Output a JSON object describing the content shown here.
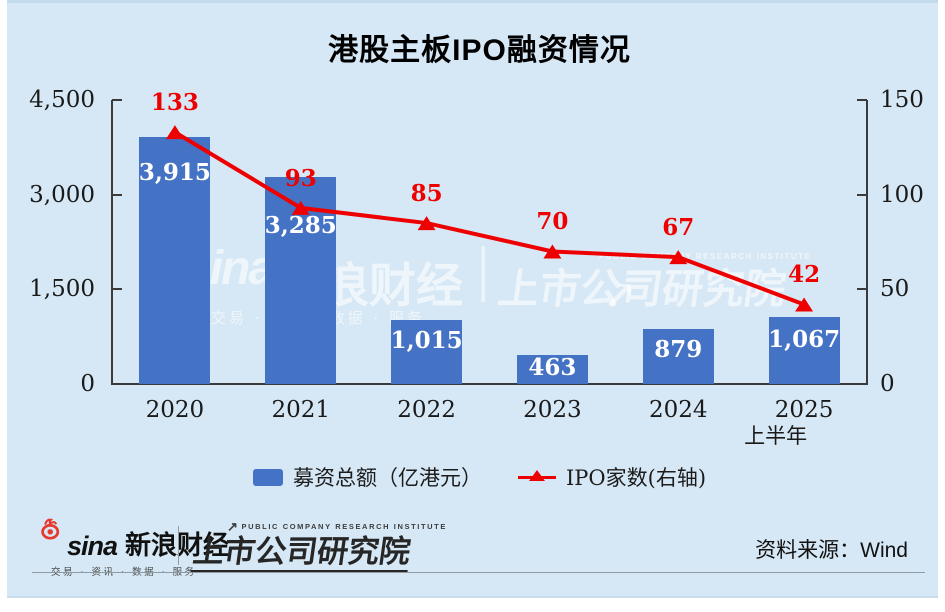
{
  "title": "港股主板IPO融资情况",
  "chart_data": {
    "type": "combo-bar-line",
    "categories": [
      "2020",
      "2021",
      "2022",
      "2023",
      "2024",
      "2025"
    ],
    "last_label_note": "上半年",
    "series": [
      {
        "name": "募资总额（亿港元）",
        "type": "bar",
        "values": [
          3915,
          3285,
          1015,
          463,
          879,
          1067
        ],
        "color": "#4472c4",
        "axis": "left"
      },
      {
        "name": "IPO家数(右轴)",
        "type": "line",
        "values": [
          133,
          93,
          85,
          70,
          67,
          42
        ],
        "color": "#ee0000",
        "axis": "right",
        "marker": "triangle"
      }
    ],
    "left_axis": {
      "min": 0,
      "max": 4500,
      "ticks": [
        "4,500",
        "3,000",
        "1,500",
        "0"
      ]
    },
    "right_axis": {
      "min": 0,
      "max": 150,
      "ticks": [
        "150",
        "100",
        "50",
        "0"
      ]
    },
    "grid": false,
    "legend_position": "bottom"
  },
  "watermark": {
    "sina": "sina",
    "sina_cn": "新浪财经",
    "divider": "│",
    "pcri": "上市公司研究院",
    "pcri_en": "PUBLIC COMPANY RESEARCH INSTITUTE",
    "tagline": "交易 · 资讯 · 数据 · 服务",
    "arrow": "↗"
  },
  "footer": {
    "sina_brand": "sina",
    "sina_name": "新浪财经",
    "sina_tagline": "交易 · 资讯 · 数据 · 服务",
    "pcri_en": "PUBLIC COMPANY RESEARCH INSTITUTE",
    "pcri_cn": "上市公司研究院",
    "pcri_arrow": "↗",
    "source": "资料来源：Wind"
  },
  "colors": {
    "panel_background": "#d6e8f5",
    "bar_blue": "#4472c4",
    "line_red": "#ee0000",
    "axis_text": "#1a1a1a",
    "bar_label_text": "#ffffff"
  }
}
